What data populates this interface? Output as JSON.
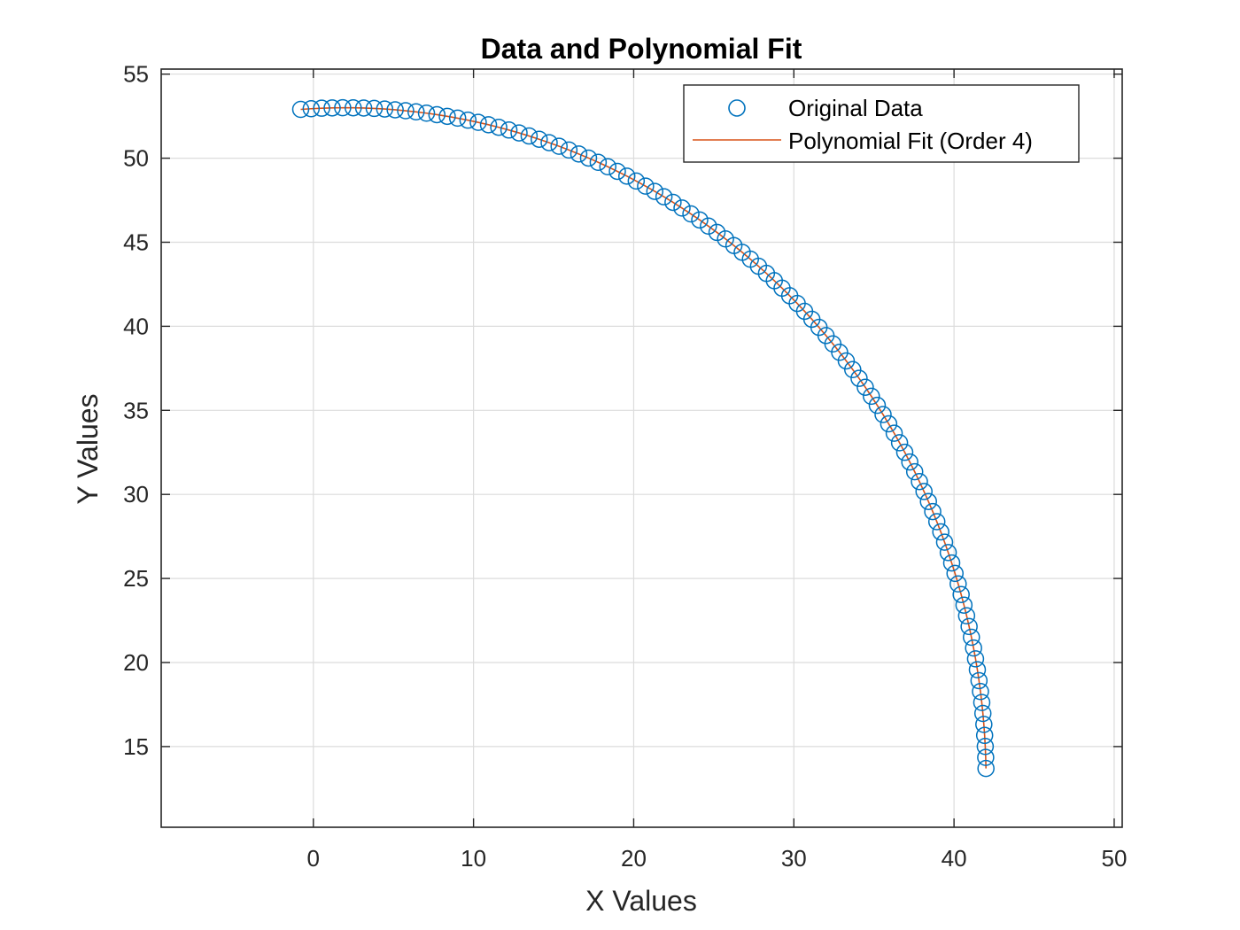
{
  "chart_data": {
    "type": "scatter",
    "title": "Data and Polynomial Fit",
    "xlabel": "X Values",
    "ylabel": "Y Values",
    "xlim": [
      -9.5,
      50.5
    ],
    "ylim": [
      10.2,
      55.3
    ],
    "xticks": [
      0,
      10,
      20,
      30,
      40,
      50
    ],
    "yticks": [
      15,
      20,
      25,
      30,
      35,
      40,
      45,
      50,
      55
    ],
    "grid": true,
    "legend_position": "top-right",
    "circle_params": {
      "center_x": 2.0,
      "center_y": 13.0,
      "radius": 40.0,
      "start_deg": 94.0,
      "end_deg": 1.0,
      "count": 100
    },
    "series": [
      {
        "name": "Original Data",
        "style": "circle-markers",
        "color": "#0072BD"
      },
      {
        "name": "Polynomial Fit (Order 4)",
        "style": "line",
        "color": "#D95319"
      }
    ]
  }
}
